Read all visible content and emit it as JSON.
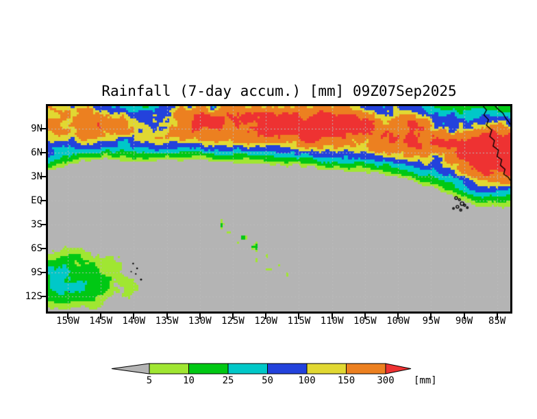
{
  "title": "Rainfall (7-day accum.) [mm] 09Z07Sep2025",
  "axes": {
    "lat_labels": [
      "9N",
      "6N",
      "3N",
      "EQ",
      "3S",
      "6S",
      "9S",
      "12S"
    ],
    "lon_labels": [
      "150W",
      "145W",
      "140W",
      "135W",
      "130W",
      "125W",
      "120W",
      "115W",
      "110W",
      "105W",
      "100W",
      "95W",
      "90W",
      "85W"
    ]
  },
  "colorbar": {
    "tick_labels": [
      "5",
      "10",
      "25",
      "50",
      "100",
      "150",
      "300"
    ],
    "unit_label": "[mm]",
    "below_color": "#b4b4b4",
    "segment_colors": [
      "#a0e632",
      "#00c814",
      "#00c8c8",
      "#2342dc",
      "#e1d832",
      "#ec8020"
    ],
    "above_color": "#ee3232"
  },
  "chart_data": {
    "type": "heatmap",
    "title": "Rainfall (7-day accum.) [mm] 09Z07Sep2025",
    "variable": "7-day accumulated rainfall",
    "unit": "mm",
    "valid_time": "09Z07Sep2025",
    "lon_range_deg_west": [
      153,
      83
    ],
    "lat_range_deg": [
      11.8,
      -13.9
    ],
    "lat_tick_deg": [
      9,
      6,
      3,
      0,
      -3,
      -6,
      -9,
      -12
    ],
    "lon_tick_deg_west": [
      150,
      145,
      140,
      135,
      130,
      125,
      120,
      115,
      110,
      105,
      100,
      95,
      90,
      85
    ],
    "thresholds_mm": [
      5,
      10,
      25,
      50,
      100,
      150,
      300
    ],
    "palette": {
      "below": "#b4b4b4",
      "bins": [
        "#a0e632",
        "#00c814",
        "#00c8c8",
        "#2342dc",
        "#e1d832",
        "#ec8020"
      ],
      "above": "#ee3232"
    },
    "gridline_color": "#bcbcbc",
    "itcz_band": {
      "control_lon_w": [
        153,
        148,
        143,
        138,
        133,
        128,
        123,
        118,
        113,
        108,
        103,
        98,
        93,
        88,
        83
      ],
      "center_lat": [
        9.3,
        9.8,
        9.4,
        9.0,
        9.9,
        10.2,
        10.1,
        9.6,
        9.1,
        9.1,
        8.6,
        8.6,
        7.2,
        6.1,
        6.0
      ],
      "half_width_deg": [
        2.8,
        2.4,
        2.2,
        2.1,
        2.4,
        2.5,
        2.6,
        2.5,
        2.5,
        2.6,
        2.6,
        2.8,
        2.9,
        3.1,
        3.2
      ],
      "peak_mm": [
        190,
        210,
        170,
        160,
        260,
        310,
        330,
        300,
        260,
        300,
        280,
        300,
        280,
        330,
        340
      ]
    },
    "south_patch": {
      "center_lon_w": 148.5,
      "center_lat": -9.5,
      "sigma_lon_deg": 8.0,
      "sigma_lat_deg": 3.0,
      "peak_mm": 20
    },
    "cyan_spot": {
      "center_lon_w": 152.6,
      "center_lat": -8.8,
      "sigma_deg": 0.9,
      "peak_mm": 42
    },
    "spcz_speckle": {
      "from_lon_lat": [
        -126.0,
        -3.0
      ],
      "to_lon_lat": [
        -117.5,
        -9.3
      ],
      "sigma_deg": 0.8,
      "peak_mm": 14,
      "gate": 0.6
    },
    "coastlines": [
      [
        [
          87.1,
          11.8
        ],
        [
          86.6,
          11.3
        ],
        [
          87.0,
          10.7
        ],
        [
          86.3,
          10.1
        ],
        [
          86.6,
          9.4
        ],
        [
          85.8,
          8.8
        ],
        [
          86.1,
          8.0
        ],
        [
          85.4,
          7.5
        ],
        [
          85.6,
          6.8
        ],
        [
          84.8,
          6.3
        ],
        [
          85.0,
          5.5
        ],
        [
          84.3,
          5.1
        ],
        [
          84.5,
          4.4
        ],
        [
          83.8,
          3.9
        ],
        [
          84.0,
          3.3
        ],
        [
          83.3,
          2.9
        ],
        [
          83.0,
          2.5
        ]
      ],
      [
        [
          85.3,
          11.8
        ],
        [
          84.7,
          11.3
        ],
        [
          84.1,
          10.9
        ],
        [
          83.7,
          10.3
        ],
        [
          83.3,
          9.9
        ],
        [
          83.0,
          9.5
        ]
      ]
    ],
    "islands_outlined": [
      [
        91.2,
        0.3,
        2.0
      ],
      [
        90.7,
        0.1,
        1.5
      ],
      [
        90.3,
        -0.4,
        2.5
      ],
      [
        91.0,
        -0.8,
        2.0
      ],
      [
        89.9,
        -0.6,
        1.5
      ],
      [
        90.5,
        -1.2,
        1.5
      ],
      [
        91.6,
        -1.0,
        1.2
      ],
      [
        89.5,
        -0.9,
        1.2
      ]
    ],
    "islands_dots": [
      [
        140.1,
        -7.9,
        1.2
      ],
      [
        139.5,
        -8.5,
        1.3
      ],
      [
        139.7,
        -9.2,
        1.1
      ],
      [
        138.9,
        -9.9,
        1.4
      ],
      [
        140.4,
        -8.9,
        1.0
      ],
      [
        149.8,
        -11.4,
        0.9
      ]
    ]
  }
}
